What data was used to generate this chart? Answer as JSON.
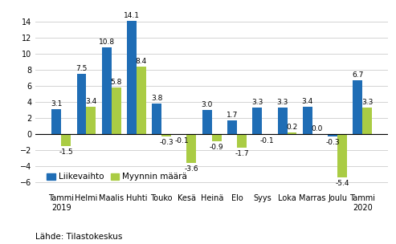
{
  "categories": [
    "Tammi\n2019",
    "Helmi",
    "Maalis",
    "Huhti",
    "Touko",
    "Kesä",
    "Heinä",
    "Elo",
    "Syys",
    "Loka",
    "Marras",
    "Joulu",
    "Tammi\n2020"
  ],
  "liikevaihto": [
    3.1,
    7.5,
    10.8,
    14.1,
    3.8,
    -0.1,
    3.0,
    1.7,
    3.3,
    3.3,
    3.4,
    -0.3,
    6.7
  ],
  "myynnin_maara": [
    -1.5,
    3.4,
    5.8,
    8.4,
    -0.3,
    -3.6,
    -0.9,
    -1.7,
    -0.1,
    0.2,
    0.0,
    -5.4,
    3.3
  ],
  "color_liikevaihto": "#1F6DB5",
  "color_myynnin_maara": "#AACC44",
  "ylim": [
    -7,
    15.8
  ],
  "yticks": [
    -6,
    -4,
    -2,
    0,
    2,
    4,
    6,
    8,
    10,
    12,
    14
  ],
  "legend_liikevaihto": "Liikevaihto",
  "legend_myynnin_maara": "Myynnin määrä",
  "source_text": "Lähde: Tilastokeskus",
  "bar_width": 0.38,
  "label_fontsize": 6.5,
  "tick_fontsize": 7.0,
  "legend_fontsize": 7.5,
  "source_fontsize": 7.5
}
